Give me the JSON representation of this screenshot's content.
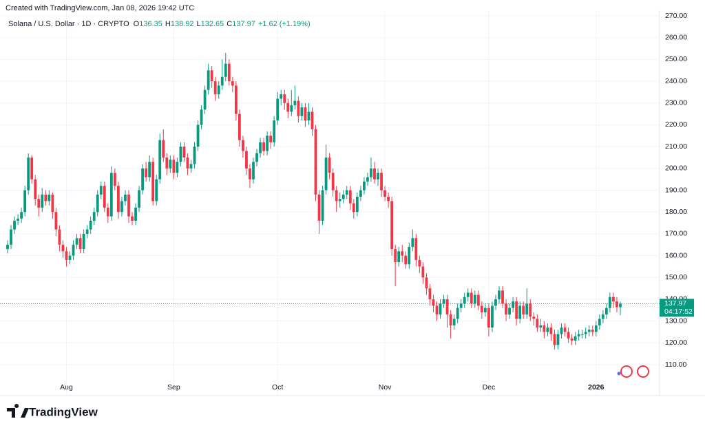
{
  "header": {
    "credit": "Created with TradingView.com, Jan 08, 2026 19:42 UTC"
  },
  "chart_data": {
    "type": "candlestick",
    "legend": {
      "symbol": "Solana / U.S. Dollar · 1D · CRYPTO",
      "o": "O",
      "h": "H",
      "l": "L",
      "c": "C",
      "change": "+1.62 (+1.19%)"
    },
    "countdown": "04:17:52",
    "up_color": "#089981",
    "down_color": "#f23645",
    "grid": true,
    "open": [
      163,
      165,
      172,
      176,
      177,
      180,
      190,
      205,
      195,
      186,
      182,
      188,
      185,
      188,
      180,
      172,
      165,
      162,
      158,
      160,
      165,
      168,
      163,
      170,
      172,
      176,
      180,
      188,
      192,
      182,
      178,
      198,
      192,
      180,
      185,
      188,
      178,
      176,
      182,
      190,
      200,
      196,
      203,
      185,
      195,
      213,
      205,
      200,
      204,
      198,
      203,
      210,
      205,
      200,
      202,
      210,
      220,
      227,
      236,
      245,
      240,
      234,
      238,
      242,
      248,
      240,
      238,
      225,
      213,
      208,
      200,
      195,
      203,
      207,
      212,
      208,
      215,
      212,
      222,
      232,
      234,
      230,
      226,
      229,
      231,
      224,
      228,
      222,
      226,
      218,
      188,
      176,
      190,
      205,
      198,
      190,
      185,
      186,
      188,
      190,
      184,
      180,
      187,
      190,
      194,
      196,
      200,
      195,
      198,
      190,
      187,
      185,
      163,
      157,
      162,
      160,
      156,
      164,
      168,
      158,
      155,
      150,
      145,
      140,
      137,
      133,
      138,
      140,
      133,
      128,
      131,
      136,
      138,
      141,
      143,
      138,
      142,
      137,
      134,
      136,
      127,
      137,
      140,
      144,
      138,
      133,
      136,
      139,
      131,
      137,
      133,
      138,
      132,
      131,
      127,
      128,
      125,
      127,
      124,
      119,
      124,
      127,
      125,
      122,
      121,
      123,
      124,
      124,
      125,
      126,
      125,
      128,
      131,
      133,
      136,
      141,
      139,
      136.35
    ],
    "high": [
      167,
      174,
      178,
      179,
      182,
      192,
      207,
      206,
      197,
      188,
      191,
      190,
      190,
      189,
      182,
      174,
      167,
      164,
      162,
      167,
      170,
      170,
      172,
      174,
      178,
      182,
      190,
      194,
      194,
      184,
      201,
      200,
      194,
      187,
      190,
      190,
      180,
      184,
      192,
      202,
      203,
      206,
      205,
      197,
      216,
      218,
      207,
      206,
      206,
      205,
      212,
      212,
      207,
      204,
      212,
      222,
      229,
      238,
      248,
      247,
      242,
      240,
      250,
      253,
      250,
      242,
      240,
      227,
      215,
      210,
      202,
      205,
      209,
      214,
      214,
      217,
      217,
      224,
      235,
      236,
      236,
      232,
      236,
      238,
      233,
      230,
      230,
      230,
      228,
      220,
      190,
      192,
      211,
      207,
      200,
      192,
      189,
      190,
      192,
      192,
      186,
      189,
      192,
      196,
      198,
      205,
      203,
      200,
      200,
      192,
      189,
      187,
      165,
      164,
      165,
      162,
      166,
      172,
      170,
      160,
      157,
      152,
      147,
      142,
      139,
      140,
      142,
      142,
      135,
      133,
      138,
      140,
      143,
      145,
      145,
      144,
      144,
      139,
      138,
      138,
      139,
      142,
      146,
      146,
      140,
      138,
      141,
      141,
      139,
      139,
      145,
      140,
      134,
      133,
      131,
      130,
      129,
      129,
      126,
      126,
      129,
      129,
      127,
      124,
      125,
      126,
      126,
      127,
      128,
      128,
      130,
      133,
      135,
      138,
      143,
      143,
      141,
      138.92
    ],
    "low": [
      161,
      163,
      170,
      174,
      175,
      178,
      188,
      193,
      183,
      178,
      180,
      183,
      183,
      177,
      169,
      162,
      159,
      155,
      156,
      158,
      163,
      161,
      161,
      168,
      170,
      174,
      178,
      186,
      180,
      175,
      176,
      190,
      177,
      178,
      183,
      175,
      174,
      174,
      180,
      188,
      194,
      194,
      183,
      183,
      193,
      203,
      197,
      198,
      195,
      196,
      201,
      203,
      197,
      198,
      200,
      208,
      218,
      225,
      234,
      237,
      231,
      232,
      236,
      240,
      238,
      235,
      222,
      210,
      205,
      197,
      191,
      193,
      201,
      205,
      206,
      206,
      209,
      210,
      220,
      229,
      227,
      223,
      224,
      227,
      221,
      222,
      219,
      220,
      215,
      185,
      170,
      174,
      188,
      195,
      187,
      180,
      182,
      184,
      186,
      181,
      177,
      178,
      185,
      188,
      192,
      194,
      193,
      192,
      187,
      185,
      182,
      160,
      146,
      155,
      157,
      154,
      154,
      162,
      155,
      152,
      147,
      142,
      137,
      134,
      130,
      131,
      136,
      127,
      122,
      126,
      129,
      134,
      136,
      139,
      136,
      136,
      135,
      131,
      132,
      123,
      125,
      135,
      138,
      136,
      130,
      131,
      134,
      128,
      129,
      131,
      131,
      130,
      128,
      125,
      125,
      122,
      123,
      121,
      117,
      117,
      122,
      123,
      120,
      119,
      119,
      121,
      122,
      122,
      123,
      123,
      123,
      126,
      129,
      131,
      134,
      136,
      134,
      132.65
    ],
    "close": [
      165,
      172,
      176,
      177,
      180,
      190,
      205,
      195,
      186,
      182,
      188,
      185,
      188,
      180,
      172,
      165,
      162,
      158,
      160,
      165,
      168,
      163,
      170,
      172,
      176,
      180,
      188,
      192,
      182,
      178,
      198,
      192,
      180,
      185,
      188,
      178,
      176,
      182,
      190,
      200,
      196,
      203,
      185,
      195,
      213,
      205,
      200,
      204,
      198,
      203,
      210,
      205,
      200,
      202,
      210,
      220,
      227,
      236,
      245,
      240,
      234,
      238,
      242,
      248,
      240,
      238,
      225,
      213,
      208,
      200,
      195,
      203,
      207,
      212,
      208,
      215,
      212,
      222,
      232,
      234,
      230,
      226,
      229,
      231,
      224,
      228,
      222,
      226,
      218,
      188,
      176,
      190,
      205,
      198,
      190,
      185,
      186,
      188,
      190,
      184,
      180,
      187,
      190,
      194,
      196,
      200,
      195,
      198,
      190,
      187,
      185,
      163,
      157,
      162,
      160,
      156,
      164,
      168,
      158,
      155,
      150,
      145,
      140,
      137,
      133,
      138,
      140,
      133,
      128,
      131,
      136,
      138,
      141,
      143,
      138,
      142,
      137,
      134,
      136,
      127,
      137,
      140,
      144,
      138,
      133,
      136,
      139,
      131,
      137,
      133,
      138,
      132,
      131,
      127,
      128,
      125,
      127,
      124,
      119,
      124,
      127,
      125,
      122,
      121,
      123,
      124,
      124,
      125,
      126,
      125,
      128,
      131,
      133,
      136,
      141,
      139,
      136.35,
      137.97
    ],
    "xlim": [
      0,
      177
    ],
    "xticks": [
      {
        "value": 17,
        "label": "Aug"
      },
      {
        "value": 48,
        "label": "Sep"
      },
      {
        "value": 78,
        "label": "Oct"
      },
      {
        "value": 109,
        "label": "Nov"
      },
      {
        "value": 139,
        "label": "Dec"
      },
      {
        "value": 170,
        "label": "2026"
      }
    ],
    "ylim": [
      110,
      270
    ],
    "yticks": [
      {
        "value": 110,
        "label": "110.00"
      },
      {
        "value": 120,
        "label": "120.00"
      },
      {
        "value": 130,
        "label": "130.00"
      },
      {
        "value": 140,
        "label": "140.00"
      },
      {
        "value": 150,
        "label": "150.00"
      },
      {
        "value": 160,
        "label": "160.00"
      },
      {
        "value": 170,
        "label": "170.00"
      },
      {
        "value": 180,
        "label": "180.00"
      },
      {
        "value": 190,
        "label": "190.00"
      },
      {
        "value": 200,
        "label": "200.00"
      },
      {
        "value": 210,
        "label": "210.00"
      },
      {
        "value": 220,
        "label": "220.00"
      },
      {
        "value": 230,
        "label": "230.00"
      },
      {
        "value": 240,
        "label": "240.00"
      },
      {
        "value": 250,
        "label": "250.00"
      },
      {
        "value": 260,
        "label": "260.00"
      },
      {
        "value": 270,
        "label": "270.00"
      }
    ]
  },
  "footer": {
    "brand": "TradingView"
  }
}
